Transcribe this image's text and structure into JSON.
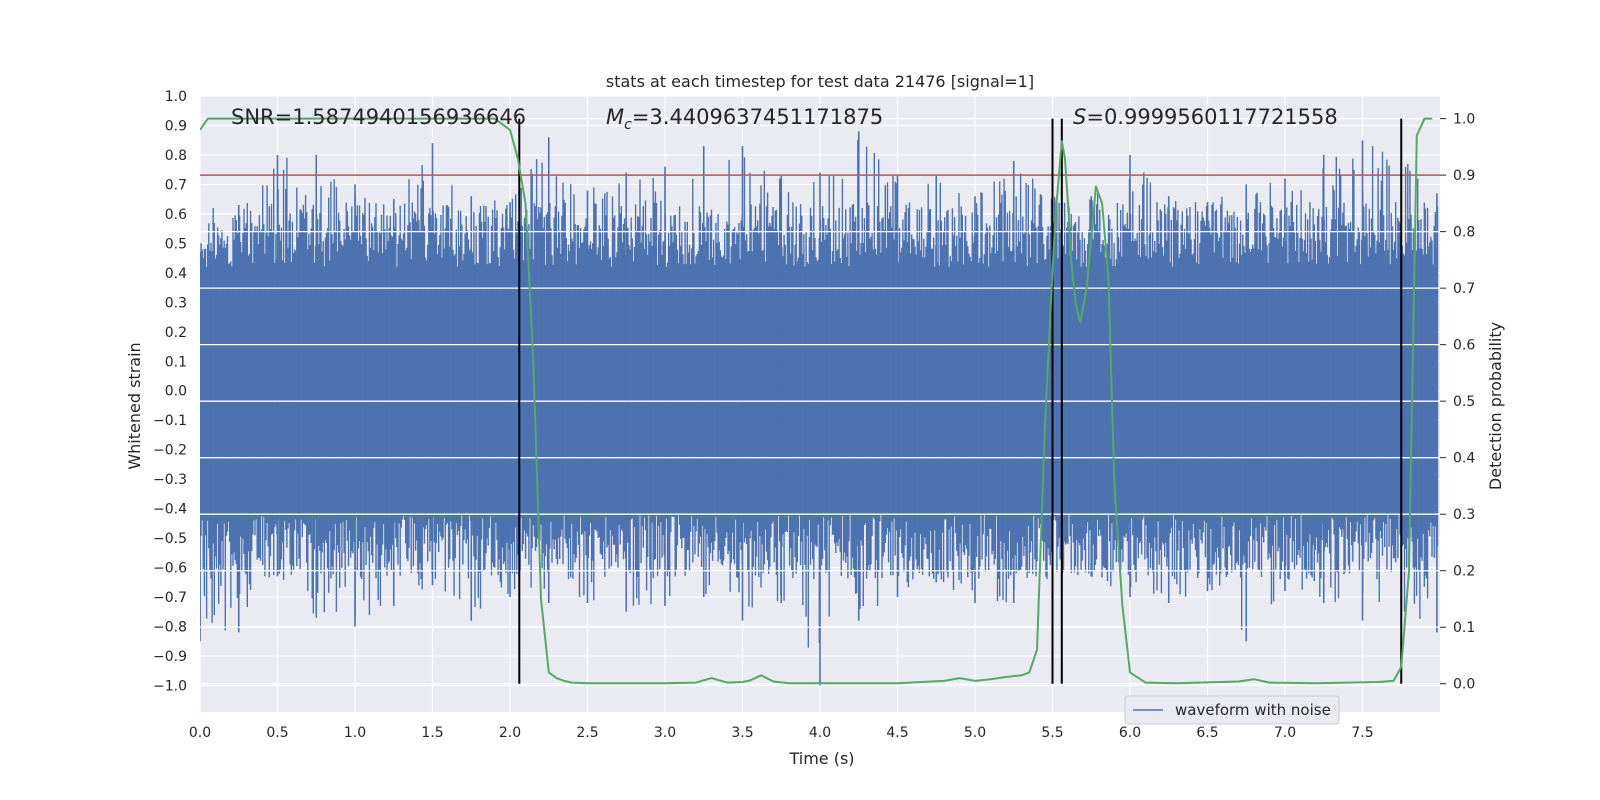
{
  "chart_data": {
    "type": "line",
    "title": "stats at each timestep for test data 21476 [signal=1]",
    "xlabel": "Time (s)",
    "ylabel": "Whitened strain",
    "y2label": "Detection probability",
    "xlim": [
      0.0,
      8.0
    ],
    "ylim": [
      -1.09,
      1.0
    ],
    "y2lim": [
      -0.05,
      1.04
    ],
    "xticks": [
      0.0,
      0.5,
      1.0,
      1.5,
      2.0,
      2.5,
      3.0,
      3.5,
      4.0,
      4.5,
      5.0,
      5.5,
      6.0,
      6.5,
      7.0,
      7.5
    ],
    "yticks": [
      1.0,
      0.9,
      0.8,
      0.7,
      0.6,
      0.5,
      0.4,
      0.3,
      0.2,
      0.1,
      0.0,
      -0.1,
      -0.2,
      -0.3,
      -0.4,
      -0.5,
      -0.6,
      -0.7,
      -0.8,
      -0.9,
      -1.0
    ],
    "y2ticks": [
      1.0,
      0.9,
      0.8,
      0.7,
      0.6,
      0.5,
      0.4,
      0.3,
      0.2,
      0.1,
      0.0
    ],
    "annotations": {
      "snr": "SNR=1.5874940156936646",
      "mc_symbol": "M",
      "mc_sub": "c",
      "mc_value": "=3.4409637451171875",
      "s_symbol": "S",
      "s_value": "=0.9999560117721558"
    },
    "threshold_line": {
      "value": 0.9,
      "axis": "right",
      "color": "#c44e52"
    },
    "vertical_lines": [
      2.06,
      5.5,
      5.56,
      7.75
    ],
    "series": [
      {
        "name": "waveform with noise",
        "color": "#4c72b0",
        "axis": "left",
        "envelope_x": [
          0.0,
          0.25,
          0.5,
          0.75,
          1.0,
          1.25,
          1.5,
          1.75,
          2.0,
          2.25,
          2.5,
          2.75,
          3.0,
          3.25,
          3.5,
          3.75,
          4.0,
          4.25,
          4.5,
          4.75,
          5.0,
          5.25,
          5.5,
          5.75,
          6.0,
          6.25,
          6.5,
          6.75,
          7.0,
          7.25,
          7.5,
          7.75,
          8.0
        ],
        "envelope_upper": [
          0.47,
          0.63,
          0.8,
          0.8,
          0.7,
          0.65,
          0.84,
          0.66,
          0.64,
          0.86,
          0.68,
          0.74,
          0.76,
          0.83,
          0.83,
          0.73,
          0.74,
          0.88,
          0.73,
          0.73,
          0.66,
          0.78,
          0.66,
          0.66,
          0.8,
          0.66,
          0.64,
          0.7,
          0.72,
          0.8,
          0.85,
          0.92,
          0.67
        ],
        "envelope_lower": [
          -0.85,
          -0.82,
          -0.63,
          -0.77,
          -0.8,
          -0.73,
          -0.66,
          -0.78,
          -0.7,
          -0.72,
          -0.72,
          -0.75,
          -0.73,
          -0.7,
          -0.78,
          -0.72,
          -1.0,
          -0.78,
          -0.7,
          -0.65,
          -0.72,
          -0.72,
          -0.63,
          -0.63,
          -0.7,
          -0.72,
          -0.68,
          -0.85,
          -0.68,
          -0.72,
          -0.78,
          -0.77,
          -0.82
        ]
      },
      {
        "name": "detection probability",
        "color": "#55a868",
        "axis": "right",
        "x": [
          0.0,
          0.05,
          0.1,
          1.9,
          2.0,
          2.05,
          2.1,
          2.15,
          2.2,
          2.25,
          2.3,
          2.35,
          2.4,
          2.5,
          3.0,
          3.2,
          3.3,
          3.4,
          3.5,
          3.55,
          3.62,
          3.7,
          3.8,
          4.0,
          4.5,
          4.8,
          4.9,
          5.0,
          5.1,
          5.2,
          5.3,
          5.35,
          5.4,
          5.45,
          5.5,
          5.52,
          5.56,
          5.58,
          5.6,
          5.62,
          5.65,
          5.68,
          5.72,
          5.78,
          5.82,
          5.86,
          5.9,
          5.95,
          6.0,
          6.1,
          6.3,
          6.7,
          6.8,
          6.9,
          7.2,
          7.6,
          7.7,
          7.75,
          7.8,
          7.85,
          7.9,
          7.95
        ],
        "y": [
          0.98,
          1.0,
          1.0,
          1.0,
          0.98,
          0.93,
          0.85,
          0.57,
          0.15,
          0.02,
          0.01,
          0.005,
          0.002,
          0.001,
          0.001,
          0.002,
          0.01,
          0.002,
          0.003,
          0.006,
          0.015,
          0.004,
          0.001,
          0.001,
          0.001,
          0.005,
          0.01,
          0.005,
          0.008,
          0.012,
          0.015,
          0.02,
          0.06,
          0.45,
          0.73,
          0.83,
          0.96,
          0.93,
          0.85,
          0.75,
          0.67,
          0.64,
          0.7,
          0.88,
          0.85,
          0.72,
          0.35,
          0.14,
          0.02,
          0.002,
          0.001,
          0.004,
          0.008,
          0.002,
          0.001,
          0.003,
          0.005,
          0.03,
          0.2,
          0.97,
          1.0,
          1.0
        ]
      }
    ],
    "legend": {
      "label": "waveform with noise",
      "location": "lower-right"
    }
  }
}
